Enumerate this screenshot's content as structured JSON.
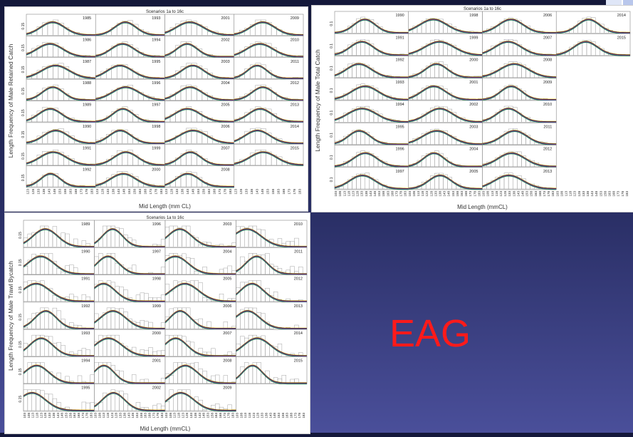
{
  "slide": {
    "label": "EAG",
    "accent_color": "#ff1a1a",
    "background": "#2a2f66"
  },
  "chart_data": [
    {
      "type": "bar",
      "title": "Scenarios 1a to 16c",
      "ylabel": "Length Frequency of Male Retained Catch",
      "xlabel": "Mid Length (mm CL)",
      "ytick": "0.15",
      "x_ticks": [
        "123",
        "128",
        "133",
        "138",
        "143",
        "148",
        "153",
        "158",
        "163",
        "168",
        "173",
        "178",
        "183"
      ],
      "years": [
        "1985",
        "1986",
        "1987",
        "1988",
        "1989",
        "1990",
        "1991",
        "1992",
        "1993",
        "1994",
        "1995",
        "1996",
        "1997",
        "1998",
        "1999",
        "2000",
        "2001",
        "2002",
        "2003",
        "2004",
        "2005",
        "2006",
        "2007",
        "2008",
        "2009",
        "2010",
        "2011",
        "2012",
        "2013",
        "2014",
        "2015"
      ],
      "grid": {
        "cols": 4,
        "rows": 8
      }
    },
    {
      "type": "bar",
      "title": "Scenarios 1a to 16c",
      "ylabel": "Length Frequency of Male Total Catch",
      "xlabel": "Mid Length (mmCL)",
      "ytick": "0.1",
      "x_ticks": [
        "103",
        "108",
        "113",
        "118",
        "123",
        "128",
        "133",
        "138",
        "143",
        "148",
        "153",
        "158",
        "163",
        "168",
        "173",
        "178",
        "183"
      ],
      "years": [
        "1990",
        "1991",
        "1992",
        "1993",
        "1994",
        "1995",
        "1996",
        "1997",
        "1998",
        "1999",
        "2000",
        "2001",
        "2002",
        "2003",
        "2004",
        "2005",
        "2006",
        "2007",
        "2008",
        "2009",
        "2010",
        "2011",
        "2012",
        "2013",
        "2014",
        "2015"
      ],
      "grid": {
        "cols": 4,
        "rows": 8
      }
    },
    {
      "type": "bar",
      "title": "Scenarios 1a to 16c",
      "ylabel": "Length Frequency of Male Trawl Bycatch",
      "xlabel": "Mid Length (mmCL)",
      "ytick": "0.15",
      "x_ticks": [
        "103",
        "108",
        "113",
        "118",
        "123",
        "128",
        "133",
        "138",
        "143",
        "148",
        "153",
        "158",
        "163",
        "168",
        "173",
        "178",
        "183"
      ],
      "years": [
        "1989",
        "1990",
        "1991",
        "1992",
        "1993",
        "1994",
        "1995",
        "1996",
        "1997",
        "1998",
        "1999",
        "2000",
        "2001",
        "2002",
        "2003",
        "2004",
        "2005",
        "2006",
        "2007",
        "2008",
        "2009",
        "2010",
        "2011",
        "2012",
        "2013",
        "2014",
        "2015"
      ],
      "grid": {
        "cols": 4,
        "rows": 7
      }
    }
  ]
}
